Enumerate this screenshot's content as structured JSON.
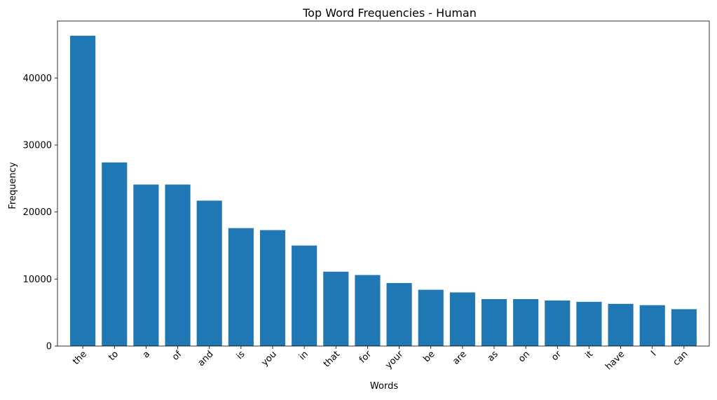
{
  "chart_data": {
    "type": "bar",
    "title": "Top Word Frequencies - Human",
    "xlabel": "Words",
    "ylabel": "Frequency",
    "categories": [
      "the",
      "to",
      "a",
      "of",
      "and",
      "is",
      "you",
      "in",
      "that",
      "for",
      "your",
      "be",
      "are",
      "as",
      "on",
      "or",
      "it",
      "have",
      "I",
      "can"
    ],
    "values": [
      46300,
      27400,
      24100,
      24100,
      21700,
      17600,
      17300,
      15000,
      11100,
      10600,
      9400,
      8400,
      8000,
      7000,
      7000,
      6800,
      6600,
      6300,
      6100,
      5500
    ],
    "ylim": [
      0,
      48500
    ],
    "yticks": [
      0,
      10000,
      20000,
      30000,
      40000
    ],
    "ytick_labels": [
      "0",
      "10000",
      "20000",
      "30000",
      "40000"
    ],
    "grid": false,
    "bar_color": "#1f77b4",
    "xtick_rotation_deg": -45
  }
}
